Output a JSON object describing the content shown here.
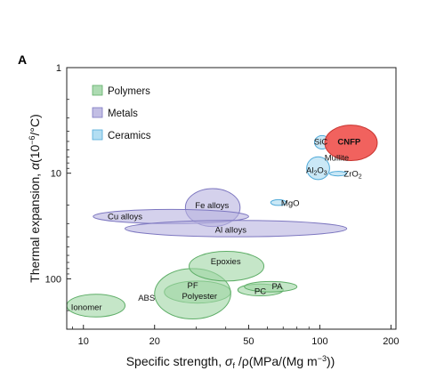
{
  "panel_letter": "A",
  "chart_data": {
    "type": "scatter",
    "subtype": "material property ellipses (Ashby-style map)",
    "x_scale": "log",
    "y_scale": "log",
    "y_inverted": true,
    "xlim": [
      8.5,
      210
    ],
    "ylim": [
      1,
      300
    ],
    "x_ticks": [
      10,
      20,
      50,
      100,
      200
    ],
    "x_tick_labels": [
      "10",
      "20",
      "50",
      "100",
      "200"
    ],
    "y_ticks": [
      1,
      10,
      100
    ],
    "y_tick_labels": [
      "1",
      "10",
      "100"
    ],
    "xlabel": "Specific strength, σf /ρ(MPa/(Mg m⁻³))",
    "xlabel_parts": {
      "prefix": "Specific strength, ",
      "sigma": "σ",
      "sub": "f",
      "suffix": " /ρ(MPa/(Mg m",
      "sup": "−3",
      "end": "))"
    },
    "ylabel": "Thermal expansion, α(10⁻⁶/°C)",
    "ylabel_parts": {
      "prefix": "Thermal expansion, ",
      "alpha": "α",
      "unit_open": "(10",
      "sup": "−6",
      "unit_close": "/°C)"
    },
    "grid": false,
    "legend": {
      "placement": "top-left",
      "entries": [
        {
          "name": "Polymers",
          "color": "#9fd5a4",
          "stroke": "#5fae68"
        },
        {
          "name": "Metals",
          "color": "#b7b3df",
          "stroke": "#7d77c0"
        },
        {
          "name": "Ceramics",
          "color": "#a6d8f0",
          "stroke": "#4fa9d8"
        }
      ]
    },
    "colors": {
      "polymers_fill": "#9fd5a4",
      "polymers_stroke": "#5fae68",
      "metals_fill": "#b7b3df",
      "metals_stroke": "#7d77c0",
      "ceramics_fill": "#a6d8f0",
      "ceramics_stroke": "#4fa9d8",
      "cnfp_fill": "#f05a55",
      "cnfp_stroke": "#c8342f"
    },
    "series": [
      {
        "name": "Polymers",
        "regions": [
          {
            "label": "Ionomer",
            "x_range": [
              8.5,
              15
            ],
            "y_range": [
              140,
              230
            ],
            "label_x": 10.3,
            "label_y": 185
          },
          {
            "label": "ABS",
            "x_range": [
              13,
              45
            ],
            "y_range": [
              65,
              240
            ],
            "label_x": 18.5,
            "label_y": 150,
            "label_only": true
          },
          {
            "label": "PF",
            "x_range": [
              22,
              42
            ],
            "y_range": [
              105,
              170
            ],
            "label_x": 29,
            "label_y": 115
          },
          {
            "label": "Polyester",
            "x_range": [
              20,
              42
            ],
            "y_range": [
              80,
              240
            ],
            "label_x": 31,
            "label_y": 145
          },
          {
            "label": "Epoxies",
            "x_range": [
              28,
              58
            ],
            "y_range": [
              55,
              105
            ],
            "label_x": 40,
            "label_y": 68
          },
          {
            "label": "PC",
            "x_range": [
              45,
              70
            ],
            "y_range": [
              112,
              145
            ],
            "label_x": 56,
            "label_y": 130
          },
          {
            "label": "PA",
            "x_range": [
              48,
              80
            ],
            "y_range": [
              106,
              133
            ],
            "label_x": 66,
            "label_y": 117
          }
        ]
      },
      {
        "name": "Metals",
        "regions": [
          {
            "label": "Fe alloys",
            "x_range": [
              27,
              46
            ],
            "y_range": [
              14,
              32
            ],
            "label_x": 35,
            "label_y": 20
          },
          {
            "label": "Cu alloys",
            "x_range": [
              11,
              50
            ],
            "y_range": [
              22,
              30
            ],
            "label_x": 15,
            "label_y": 25.5
          },
          {
            "label": "Al alloys",
            "x_range": [
              15,
              130
            ],
            "y_range": [
              28,
              40
            ],
            "label_x": 42,
            "label_y": 34
          }
        ]
      },
      {
        "name": "Ceramics",
        "regions": [
          {
            "label": "SiC",
            "x_range": [
              95,
              110
            ],
            "y_range": [
              4.4,
              5.9
            ],
            "label_x": 101,
            "label_y": 5.0
          },
          {
            "label": "Al2O3",
            "x_range": [
              88,
              110
            ],
            "y_range": [
              7,
              11.5
            ],
            "label_x": 97,
            "label_y": 9.3
          },
          {
            "label": "Mullite",
            "x_range": [
              99,
              112
            ],
            "y_range": [
              5.6,
              6.6
            ],
            "label_x": 118,
            "label_y": 7.1,
            "label_only": true
          },
          {
            "label": "ZrO2",
            "x_range": [
              110,
              130
            ],
            "y_range": [
              9.6,
              10.6
            ],
            "label_x": 138,
            "label_y": 10.1
          },
          {
            "label": "MgO",
            "x_range": [
              62,
              72
            ],
            "y_range": [
              17.8,
              20.2
            ],
            "label_x": 75,
            "label_y": 19
          }
        ]
      },
      {
        "name": "CNFP",
        "regions": [
          {
            "label": "CNFP",
            "x_range": [
              105,
              175
            ],
            "y_range": [
              3.5,
              7.6
            ],
            "label_x": 133,
            "label_y": 5.0
          }
        ]
      }
    ]
  }
}
